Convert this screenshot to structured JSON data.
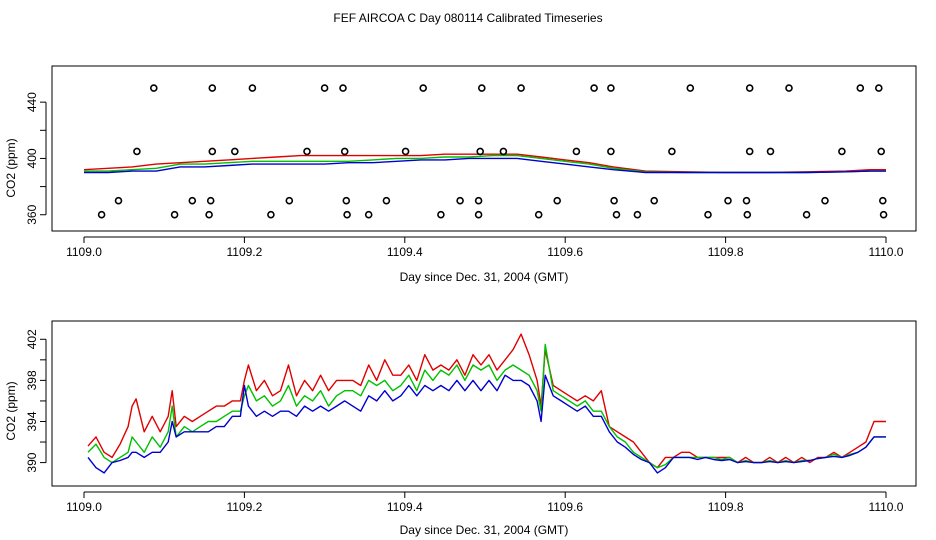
{
  "title": "FEF AIRCOA C  Day 080114  Calibrated Timeseries",
  "chart_data": [
    {
      "type": "scatter+line",
      "title": "",
      "xlabel": "Day since Dec. 31, 2004 (GMT)",
      "ylabel": "CO2 (ppm)",
      "xlim": [
        1109.0,
        1110.0
      ],
      "ylim": [
        352,
        460
      ],
      "xticks": [
        1109.0,
        1109.2,
        1109.4,
        1109.6,
        1109.8,
        1110.0
      ],
      "xtick_labels": [
        "1109.0",
        "1109.2",
        "1109.4",
        "1109.6",
        "1109.8",
        "1110.0"
      ],
      "yticks": [
        360,
        400,
        440
      ],
      "ytick_labels": [
        "360",
        "400",
        "440"
      ],
      "grid": false,
      "series_colors": [
        "#e00000",
        "#00c000",
        "#0000d0"
      ],
      "lines": {
        "x": [
          1109.0,
          1109.03,
          1109.06,
          1109.09,
          1109.12,
          1109.15,
          1109.18,
          1109.21,
          1109.24,
          1109.27,
          1109.3,
          1109.33,
          1109.36,
          1109.39,
          1109.42,
          1109.45,
          1109.48,
          1109.51,
          1109.54,
          1109.57,
          1109.6,
          1109.63,
          1109.66,
          1109.7,
          1109.75,
          1109.8,
          1109.85,
          1109.9,
          1109.95,
          1109.98,
          1110.0
        ],
        "series": [
          {
            "name": "red",
            "values": [
              392,
              393,
              394,
              396,
              397,
              398,
              399,
              400,
              401,
              402,
              402,
              402,
              402,
              402,
              402,
              403,
              403,
              403,
              403,
              401,
              399,
              397,
              394,
              391,
              390.5,
              390,
              390,
              390.5,
              391,
              392,
              392
            ]
          },
          {
            "name": "green",
            "values": [
              391,
              391,
              392,
              393,
              396,
              396,
              397,
              398,
              398,
              398,
              398,
              398,
              399,
              400,
              400,
              401,
              401,
              402,
              402,
              400,
              398,
              396,
              393,
              390.5,
              390,
              390,
              390,
              390,
              390.5,
              391,
              391
            ]
          },
          {
            "name": "blue",
            "values": [
              390,
              390,
              391,
              391,
              394,
              394,
              395,
              396,
              396,
              396,
              396,
              397,
              397,
              398,
              399,
              399,
              400,
              400,
              400,
              398,
              396,
              394,
              392,
              390,
              390,
              390,
              390,
              390,
              390.5,
              391,
              391
            ]
          }
        ]
      },
      "markers": [
        {
          "x": 1109.087,
          "y": 450
        },
        {
          "x": 1109.16,
          "y": 450
        },
        {
          "x": 1109.21,
          "y": 450
        },
        {
          "x": 1109.3,
          "y": 450
        },
        {
          "x": 1109.323,
          "y": 450
        },
        {
          "x": 1109.423,
          "y": 450
        },
        {
          "x": 1109.496,
          "y": 450
        },
        {
          "x": 1109.545,
          "y": 450
        },
        {
          "x": 1109.636,
          "y": 450
        },
        {
          "x": 1109.657,
          "y": 450
        },
        {
          "x": 1109.756,
          "y": 450
        },
        {
          "x": 1109.83,
          "y": 450
        },
        {
          "x": 1109.879,
          "y": 450
        },
        {
          "x": 1109.968,
          "y": 450
        },
        {
          "x": 1109.991,
          "y": 450
        },
        {
          "x": 1109.066,
          "y": 405
        },
        {
          "x": 1109.16,
          "y": 405
        },
        {
          "x": 1109.188,
          "y": 405
        },
        {
          "x": 1109.278,
          "y": 405
        },
        {
          "x": 1109.325,
          "y": 405
        },
        {
          "x": 1109.401,
          "y": 405
        },
        {
          "x": 1109.494,
          "y": 405
        },
        {
          "x": 1109.523,
          "y": 405
        },
        {
          "x": 1109.614,
          "y": 405
        },
        {
          "x": 1109.657,
          "y": 405
        },
        {
          "x": 1109.733,
          "y": 405
        },
        {
          "x": 1109.83,
          "y": 405
        },
        {
          "x": 1109.856,
          "y": 405
        },
        {
          "x": 1109.945,
          "y": 405
        },
        {
          "x": 1109.994,
          "y": 405
        },
        {
          "x": 1109.043,
          "y": 370
        },
        {
          "x": 1109.135,
          "y": 370
        },
        {
          "x": 1109.158,
          "y": 370
        },
        {
          "x": 1109.256,
          "y": 370
        },
        {
          "x": 1109.327,
          "y": 370
        },
        {
          "x": 1109.377,
          "y": 370
        },
        {
          "x": 1109.469,
          "y": 370
        },
        {
          "x": 1109.492,
          "y": 370
        },
        {
          "x": 1109.59,
          "y": 370
        },
        {
          "x": 1109.661,
          "y": 370
        },
        {
          "x": 1109.711,
          "y": 370
        },
        {
          "x": 1109.803,
          "y": 370
        },
        {
          "x": 1109.826,
          "y": 370
        },
        {
          "x": 1109.924,
          "y": 370
        },
        {
          "x": 1109.996,
          "y": 370
        },
        {
          "x": 1109.022,
          "y": 360
        },
        {
          "x": 1109.113,
          "y": 360
        },
        {
          "x": 1109.156,
          "y": 360
        },
        {
          "x": 1109.233,
          "y": 360
        },
        {
          "x": 1109.328,
          "y": 360
        },
        {
          "x": 1109.355,
          "y": 360
        },
        {
          "x": 1109.445,
          "y": 360
        },
        {
          "x": 1109.492,
          "y": 360
        },
        {
          "x": 1109.567,
          "y": 360
        },
        {
          "x": 1109.664,
          "y": 360
        },
        {
          "x": 1109.69,
          "y": 360
        },
        {
          "x": 1109.778,
          "y": 360
        },
        {
          "x": 1109.827,
          "y": 360
        },
        {
          "x": 1109.901,
          "y": 360
        },
        {
          "x": 1109.997,
          "y": 360
        }
      ]
    },
    {
      "type": "line",
      "title": "",
      "xlabel": "Day since Dec. 31, 2004 (GMT)",
      "ylabel": "CO2 (ppm)",
      "xlim": [
        1109.0,
        1110.0
      ],
      "ylim": [
        388.5,
        403
      ],
      "xticks": [
        1109.0,
        1109.2,
        1109.4,
        1109.6,
        1109.8,
        1110.0
      ],
      "xtick_labels": [
        "1109.0",
        "1109.2",
        "1109.4",
        "1109.6",
        "1109.8",
        "1110.0"
      ],
      "yticks": [
        390,
        394,
        398,
        402
      ],
      "ytick_labels": [
        "390",
        "394",
        "398",
        "402"
      ],
      "grid": false,
      "x": [
        1109.005,
        1109.015,
        1109.025,
        1109.035,
        1109.045,
        1109.055,
        1109.06,
        1109.065,
        1109.075,
        1109.085,
        1109.095,
        1109.105,
        1109.11,
        1109.115,
        1109.125,
        1109.135,
        1109.145,
        1109.155,
        1109.165,
        1109.175,
        1109.185,
        1109.195,
        1109.2,
        1109.205,
        1109.215,
        1109.225,
        1109.235,
        1109.245,
        1109.255,
        1109.265,
        1109.275,
        1109.285,
        1109.295,
        1109.305,
        1109.315,
        1109.325,
        1109.335,
        1109.345,
        1109.355,
        1109.365,
        1109.375,
        1109.385,
        1109.395,
        1109.405,
        1109.415,
        1109.425,
        1109.435,
        1109.445,
        1109.455,
        1109.465,
        1109.475,
        1109.485,
        1109.495,
        1109.505,
        1109.515,
        1109.525,
        1109.535,
        1109.545,
        1109.555,
        1109.565,
        1109.57,
        1109.575,
        1109.585,
        1109.595,
        1109.605,
        1109.615,
        1109.625,
        1109.635,
        1109.645,
        1109.655,
        1109.665,
        1109.675,
        1109.685,
        1109.695,
        1109.705,
        1109.715,
        1109.725,
        1109.735,
        1109.745,
        1109.755,
        1109.765,
        1109.775,
        1109.785,
        1109.795,
        1109.805,
        1109.815,
        1109.825,
        1109.835,
        1109.845,
        1109.855,
        1109.865,
        1109.875,
        1109.885,
        1109.895,
        1109.905,
        1109.915,
        1109.925,
        1109.935,
        1109.945,
        1109.955,
        1109.965,
        1109.975,
        1109.985,
        1109.995,
        1110.0
      ],
      "series": [
        {
          "name": "red",
          "values": [
            391.6,
            392.5,
            391.0,
            390.5,
            391.8,
            393.5,
            395.5,
            396.2,
            393.0,
            394.5,
            393.0,
            394.5,
            397.0,
            393.5,
            394.5,
            394.0,
            394.5,
            395.0,
            395.5,
            395.5,
            396.0,
            396.0,
            398.0,
            399.5,
            397.0,
            398.0,
            396.5,
            397.0,
            399.5,
            396.5,
            398.0,
            397.0,
            398.5,
            397.0,
            398.0,
            398.0,
            398.0,
            397.5,
            399.5,
            398.0,
            400.0,
            398.5,
            398.5,
            399.5,
            398.0,
            400.5,
            399.0,
            399.5,
            399.0,
            400.0,
            398.5,
            400.5,
            399.5,
            400.5,
            399.0,
            400.0,
            401.0,
            402.5,
            400.5,
            398.0,
            395.5,
            401.0,
            397.5,
            397.0,
            396.5,
            396.0,
            396.5,
            396.0,
            397.0,
            393.5,
            393.0,
            392.5,
            392.0,
            391.0,
            390.0,
            389.5,
            390.5,
            390.5,
            391.0,
            391.0,
            390.5,
            390.5,
            390.5,
            390.5,
            390.5,
            390.0,
            390.5,
            390.0,
            390.0,
            390.5,
            390.0,
            390.5,
            390.0,
            390.5,
            390.0,
            390.5,
            390.5,
            391.0,
            390.5,
            391.0,
            391.5,
            392.0,
            394.0,
            394.0,
            394.0
          ]
        },
        {
          "name": "green",
          "values": [
            391.0,
            391.8,
            390.5,
            390.0,
            390.5,
            391.0,
            392.5,
            392.0,
            391.0,
            392.5,
            391.5,
            393.0,
            395.5,
            392.5,
            393.5,
            393.0,
            393.5,
            394.0,
            394.0,
            394.5,
            395.0,
            395.0,
            396.5,
            397.5,
            396.0,
            396.5,
            395.5,
            396.0,
            397.5,
            395.5,
            396.5,
            396.0,
            397.0,
            395.5,
            396.5,
            397.0,
            397.0,
            396.5,
            398.0,
            397.5,
            398.0,
            397.0,
            397.5,
            398.5,
            397.0,
            399.0,
            398.0,
            399.0,
            398.5,
            399.5,
            398.0,
            399.5,
            399.0,
            399.5,
            398.0,
            399.0,
            399.5,
            399.0,
            398.5,
            397.0,
            395.0,
            401.5,
            397.0,
            396.5,
            396.0,
            395.5,
            396.0,
            395.0,
            395.0,
            393.5,
            392.5,
            392.0,
            391.0,
            390.5,
            390.0,
            389.5,
            389.8,
            390.5,
            390.5,
            390.5,
            390.5,
            390.5,
            390.5,
            390.3,
            390.5,
            390.0,
            390.2,
            390.0,
            390.0,
            390.2,
            390.0,
            390.2,
            390.0,
            390.2,
            390.2,
            390.4,
            390.5,
            390.8,
            390.5,
            390.8,
            391.0,
            391.5,
            392.5,
            392.5,
            392.5
          ]
        },
        {
          "name": "blue",
          "values": [
            390.5,
            389.5,
            389.0,
            390.0,
            390.2,
            390.5,
            391.0,
            391.0,
            390.5,
            391.0,
            391.0,
            392.0,
            394.0,
            392.5,
            393.0,
            393.0,
            393.0,
            393.0,
            393.5,
            393.5,
            394.5,
            394.5,
            397.5,
            395.5,
            394.5,
            395.0,
            394.5,
            395.0,
            395.0,
            394.5,
            395.5,
            395.0,
            395.5,
            395.0,
            395.5,
            396.0,
            395.5,
            395.0,
            396.5,
            396.0,
            397.0,
            396.0,
            396.5,
            397.5,
            396.5,
            397.5,
            397.0,
            397.5,
            397.0,
            398.0,
            397.0,
            398.0,
            397.0,
            398.0,
            397.0,
            398.5,
            398.0,
            398.0,
            397.5,
            396.0,
            394.0,
            398.5,
            396.5,
            396.0,
            395.5,
            395.0,
            395.5,
            394.5,
            394.5,
            393.0,
            392.0,
            391.5,
            390.8,
            390.3,
            390.0,
            389.0,
            389.5,
            390.5,
            390.5,
            390.5,
            390.3,
            390.5,
            390.3,
            390.2,
            390.3,
            390.0,
            390.1,
            390.0,
            390.0,
            390.1,
            390.0,
            390.1,
            390.0,
            390.1,
            390.2,
            390.4,
            390.5,
            390.6,
            390.5,
            390.7,
            391.0,
            391.5,
            392.5,
            392.5,
            392.5
          ]
        }
      ],
      "series_colors": [
        "#e00000",
        "#00c000",
        "#0000d0"
      ]
    }
  ]
}
